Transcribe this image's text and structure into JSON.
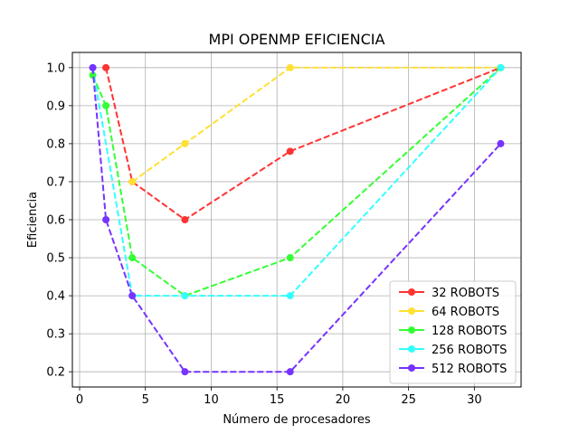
{
  "chart_data": {
    "type": "line",
    "title": "MPI OPENMP EFICIENCIA",
    "xlabel": "Número de procesadores",
    "ylabel": "Eficiencia",
    "xlim": [
      -0.55,
      33.55
    ],
    "ylim": [
      0.16,
      1.04
    ],
    "xticks": [
      0,
      5,
      10,
      15,
      20,
      25,
      30
    ],
    "yticks": [
      0.2,
      0.3,
      0.4,
      0.5,
      0.6,
      0.7,
      0.8,
      0.9,
      1.0
    ],
    "xtick_labels": [
      "0",
      "5",
      "10",
      "15",
      "20",
      "25",
      "30"
    ],
    "ytick_labels": [
      "0.2",
      "0.3",
      "0.4",
      "0.5",
      "0.6",
      "0.7",
      "0.8",
      "0.9",
      "1.0"
    ],
    "grid": true,
    "legend_position": "bottom-right",
    "series": [
      {
        "name": "32 ROBOTS",
        "color": "#ff3333",
        "x": [
          2,
          4,
          8,
          16,
          32
        ],
        "y": [
          1.0,
          0.7,
          0.6,
          0.78,
          1.0
        ]
      },
      {
        "name": "64 ROBOTS",
        "color": "#ffe033",
        "x": [
          4,
          8,
          16,
          32
        ],
        "y": [
          0.7,
          0.8,
          1.0,
          1.0
        ]
      },
      {
        "name": "128 ROBOTS",
        "color": "#33ff33",
        "x": [
          1,
          2,
          4,
          8,
          16,
          32
        ],
        "y": [
          0.98,
          0.9,
          0.5,
          0.4,
          0.5,
          1.0
        ]
      },
      {
        "name": "256 ROBOTS",
        "color": "#33ffff",
        "x": [
          1,
          4,
          8,
          16,
          32
        ],
        "y": [
          1.0,
          0.4,
          0.4,
          0.4,
          1.0
        ]
      },
      {
        "name": "512 ROBOTS",
        "color": "#7733ff",
        "x": [
          1,
          2,
          4,
          8,
          16,
          32
        ],
        "y": [
          1.0,
          0.6,
          0.4,
          0.2,
          0.2,
          0.8
        ]
      }
    ]
  }
}
